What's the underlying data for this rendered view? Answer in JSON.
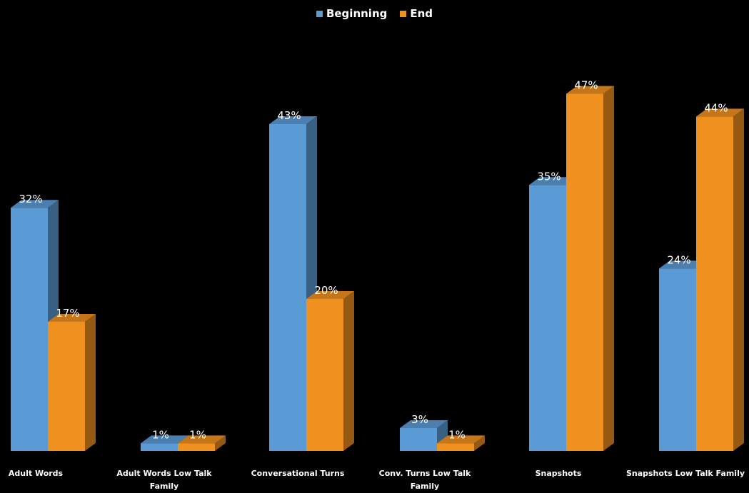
{
  "chart_data": {
    "type": "bar",
    "title": "",
    "xlabel": "",
    "ylabel": "",
    "ylim": [
      0,
      50
    ],
    "grid": false,
    "legend_position": "top-center",
    "style": "3d-columns",
    "categories": [
      "Adult Words",
      "Adult Words Low Talk Family",
      "Conversational Turns",
      "Conv. Turns Low Talk Family",
      "Snapshots",
      "Snapshots Low Talk Family"
    ],
    "series": [
      {
        "name": "Beginning",
        "color": "#5b9bd5",
        "values": [
          32,
          1,
          43,
          3,
          35,
          24
        ],
        "labels": [
          "32%",
          "1%",
          "43%",
          "3%",
          "35%",
          "24%"
        ]
      },
      {
        "name": "End",
        "color": "#f0901e",
        "values": [
          17,
          1,
          20,
          1,
          47,
          44
        ],
        "labels": [
          "17%",
          "1%",
          "20%",
          "1%",
          "47%",
          "44%"
        ]
      }
    ]
  },
  "colors": {
    "background": "#000000",
    "text": "#ffffff"
  }
}
